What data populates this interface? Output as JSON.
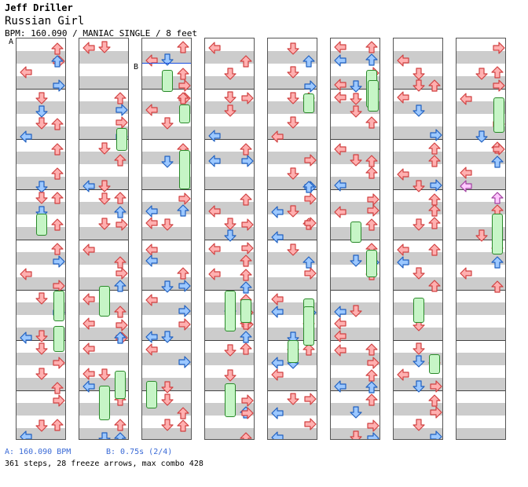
{
  "header": {
    "artist": "Jeff Driller",
    "song": "Russian Girl",
    "info": "BPM: 160.090 / MANIAC SINGLE / 8 feet",
    "mark_a": "A",
    "mark_b": "B"
  },
  "colors": {
    "red_arrow_fill": "#ffb0b0",
    "red_arrow_stroke": "#d04040",
    "blue_arrow_fill": "#9cc8ff",
    "blue_arrow_stroke": "#2060c0",
    "freeze_fill": "#c6f5c6",
    "freeze_stroke": "#2a8a2a",
    "pink_arrow_fill": "#ffc8ff",
    "stripe": "#cccccc",
    "footer_blue": "#3a6ad6"
  },
  "chart": {
    "columns": 8,
    "rows_per_column": 8,
    "lanes": [
      "left",
      "down",
      "up",
      "right"
    ],
    "arrow_colors": [
      "red",
      "blue"
    ]
  },
  "footer": {
    "a_label": "A: 160.090 BPM",
    "b_label": "B: 0.75s (2/4)",
    "stats": "361 steps, 28 freeze arrows, max combo 428"
  }
}
